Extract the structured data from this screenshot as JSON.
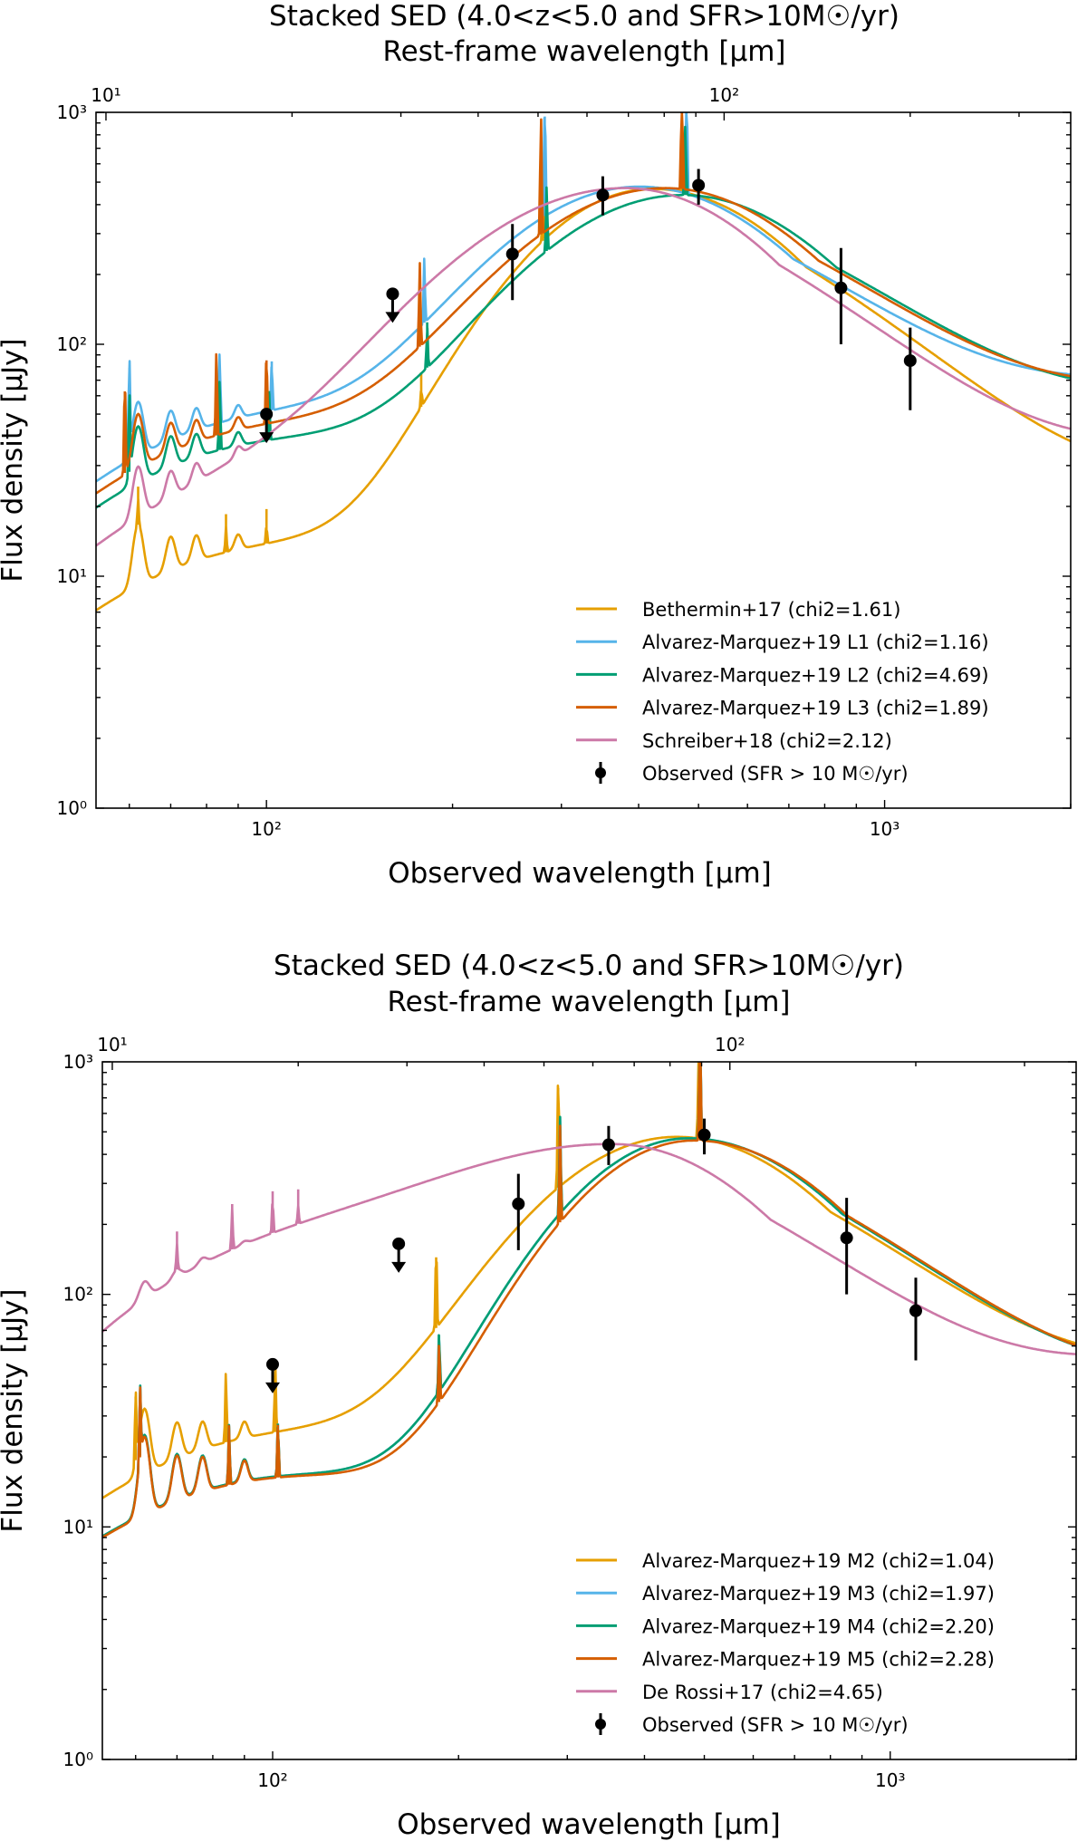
{
  "chart_data": [
    {
      "type": "line",
      "title_lines": [
        "Stacked SED (4.0<z<5.0 and SFR>10M☉/yr)",
        "Rest-frame wavelength [μm]"
      ],
      "xlabel": "Observed wavelength [μm]",
      "ylabel": "Flux density [μJy]",
      "xscale": "log",
      "yscale": "log",
      "xlim": [
        53,
        2000
      ],
      "ylim": [
        1,
        1000
      ],
      "top_axis": {
        "label": "Rest-frame wavelength [μm]",
        "redshift_factor": 5.5,
        "tick_labels": [
          "10¹",
          "10²"
        ]
      },
      "y_tick_labels": [
        "10⁰",
        "10¹",
        "10²",
        "10³"
      ],
      "x_tick_labels": [
        "10²",
        "10³"
      ],
      "legend_position": "lower-right",
      "series": [
        {
          "name": "Bethermin+17 (chi2=1.61)",
          "color": "#e69f00"
        },
        {
          "name": "Alvarez-Marquez+19 L1 (chi2=1.16)",
          "color": "#56b4e9"
        },
        {
          "name": "Alvarez-Marquez+19 L2 (chi2=4.69)",
          "color": "#009e73"
        },
        {
          "name": "Alvarez-Marquez+19 L3 (chi2=1.89)",
          "color": "#d55e00"
        },
        {
          "name": "Schreiber+18 (chi2=2.12)",
          "color": "#cc79a7"
        }
      ],
      "observed": {
        "name": "Observed (SFR > 10 M☉/yr)",
        "color": "#000000",
        "points": [
          {
            "x": 250,
            "y": 245,
            "ylow": 155,
            "yhigh": 330
          },
          {
            "x": 350,
            "y": 440,
            "ylow": 360,
            "yhigh": 530
          },
          {
            "x": 500,
            "y": 485,
            "ylow": 400,
            "yhigh": 570
          },
          {
            "x": 850,
            "y": 175,
            "ylow": 100,
            "yhigh": 260
          },
          {
            "x": 1100,
            "y": 85,
            "ylow": 52,
            "yhigh": 118
          }
        ],
        "upper_limits": [
          {
            "x": 160,
            "y": 165
          },
          {
            "x": 100,
            "y": 50
          }
        ]
      }
    },
    {
      "type": "line",
      "title_lines": [
        "Stacked SED (4.0<z<5.0 and SFR>10M☉/yr)",
        "Rest-frame wavelength [μm]"
      ],
      "xlabel": "Observed wavelength [μm]",
      "ylabel": "Flux density [μJy]",
      "xscale": "log",
      "yscale": "log",
      "xlim": [
        53,
        2000
      ],
      "ylim": [
        1,
        1000
      ],
      "top_axis": {
        "label": "Rest-frame wavelength [μm]",
        "redshift_factor": 5.5,
        "tick_labels": [
          "10¹",
          "10²"
        ]
      },
      "y_tick_labels": [
        "10⁰",
        "10¹",
        "10²",
        "10³"
      ],
      "x_tick_labels": [
        "10²",
        "10³"
      ],
      "legend_position": "lower-right",
      "series": [
        {
          "name": "Alvarez-Marquez+19 M2 (chi2=1.04)",
          "color": "#e69f00"
        },
        {
          "name": "Alvarez-Marquez+19 M3 (chi2=1.97)",
          "color": "#56b4e9"
        },
        {
          "name": "Alvarez-Marquez+19 M4 (chi2=2.20)",
          "color": "#009e73"
        },
        {
          "name": "Alvarez-Marquez+19 M5 (chi2=2.28)",
          "color": "#d55e00"
        },
        {
          "name": "De Rossi+17 (chi2=4.65)",
          "color": "#cc79a7"
        }
      ],
      "observed": {
        "name": "Observed (SFR > 10 M☉/yr)",
        "color": "#000000",
        "points": [
          {
            "x": 250,
            "y": 245,
            "ylow": 155,
            "yhigh": 330
          },
          {
            "x": 350,
            "y": 440,
            "ylow": 360,
            "yhigh": 530
          },
          {
            "x": 500,
            "y": 485,
            "ylow": 400,
            "yhigh": 570
          },
          {
            "x": 850,
            "y": 175,
            "ylow": 100,
            "yhigh": 260
          },
          {
            "x": 1100,
            "y": 85,
            "ylow": 52,
            "yhigh": 118
          }
        ],
        "upper_limits": [
          {
            "x": 160,
            "y": 165
          },
          {
            "x": 100,
            "y": 50
          }
        ]
      }
    }
  ]
}
